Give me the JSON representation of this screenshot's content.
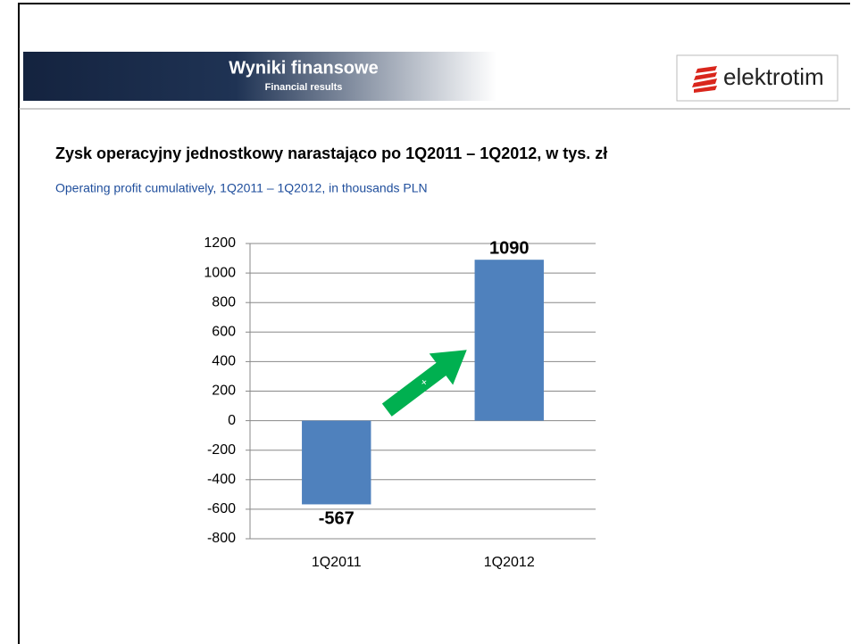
{
  "header": {
    "title": "Wyniki finansowe",
    "subtitle": "Financial results",
    "logo": "elektrotim"
  },
  "chart_data": {
    "type": "bar",
    "title": "Zysk operacyjny jednostkowy narastająco po 1Q2011 – 1Q2012, w tys. zł",
    "subtitle": "Operating profit cumulatively, 1Q2011 – 1Q2012, in thousands PLN",
    "categories": [
      "1Q2011",
      "1Q2012"
    ],
    "values": [
      -567,
      1090
    ],
    "color": "#4f81bd",
    "ylim": [
      -800,
      1200
    ],
    "yticks": [
      -800,
      -600,
      -400,
      -200,
      0,
      200,
      400,
      600,
      800,
      1000,
      1200
    ],
    "grid": true,
    "annotation": "+"
  }
}
